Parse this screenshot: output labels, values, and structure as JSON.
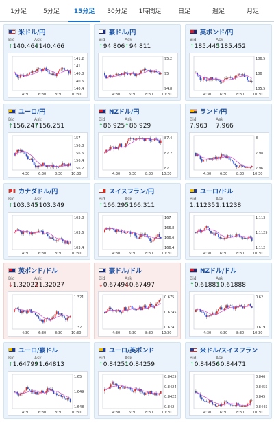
{
  "tabs": [
    {
      "label": "1分足"
    },
    {
      "label": "5分足"
    },
    {
      "label": "15分足",
      "active": true
    },
    {
      "label": "30分足"
    },
    {
      "label": "1時間足"
    },
    {
      "label": "日足"
    },
    {
      "label": "週足"
    },
    {
      "label": "月足"
    }
  ],
  "labels": {
    "bid": "Bid",
    "ask": "Ask"
  },
  "colors": {
    "up": "#2a9a4a",
    "down": "#d43c3c",
    "candle_up": "#d93030",
    "candle_down": "#2f4fd0",
    "ma": "#cc44cc"
  },
  "cards": [
    {
      "pair": "米ドル/円",
      "flag": "us",
      "dir": "up",
      "bid": "140.464",
      "ask": "140.466",
      "yticks": [
        "141.2",
        "141",
        "140.8",
        "140.6",
        "140.4"
      ],
      "xticks": [
        "4:30",
        "6:30",
        "8:30",
        "10:30"
      ]
    },
    {
      "pair": "豪ドル/円",
      "flag": "au",
      "dir": "up",
      "bid": "94.806",
      "ask": "94.811",
      "yticks": [
        "95.2",
        "95",
        "94.8"
      ],
      "xticks": [
        "4:30",
        "6:30",
        "8:30",
        "10:30"
      ]
    },
    {
      "pair": "英ポンド/円",
      "flag": "gb",
      "dir": "up",
      "bid": "185.445",
      "ask": "185.452",
      "yticks": [
        "186.5",
        "186",
        "185.5"
      ],
      "xticks": [
        "4:30",
        "6:30",
        "8:30",
        "10:30"
      ]
    },
    {
      "pair": "ユーロ/円",
      "flag": "eu",
      "dir": "up",
      "bid": "156.247",
      "ask": "156.251",
      "yticks": [
        "157",
        "156.8",
        "156.6",
        "156.4",
        "156.2"
      ],
      "xticks": [
        "4:30",
        "6:30",
        "8:30",
        "10:30"
      ]
    },
    {
      "pair": "NZドル/円",
      "flag": "nz",
      "dir": "up",
      "bid": "86.925",
      "ask": "86.929",
      "yticks": [
        "87.4",
        "87.2",
        "87"
      ],
      "xticks": [
        "4:30",
        "6:30",
        "8:30",
        "10:30"
      ]
    },
    {
      "pair": "ランド/円",
      "flag": "za",
      "dir": "none",
      "bid": "7.963",
      "ask": "7.966",
      "yticks": [
        "8",
        "7.98",
        "7.96"
      ],
      "xticks": [
        "4:30",
        "6:30",
        "8:30",
        "10:30"
      ]
    },
    {
      "pair": "カナダドル/円",
      "flag": "ca",
      "dir": "up",
      "bid": "103.345",
      "ask": "103.349",
      "yticks": [
        "103.8",
        "103.6",
        "103.4"
      ],
      "xticks": [
        "4:30",
        "6:30",
        "8:30",
        "10:30"
      ]
    },
    {
      "pair": "スイスフラン/円",
      "flag": "ch",
      "dir": "up",
      "bid": "166.295",
      "ask": "166.311",
      "yticks": [
        "167",
        "166.8",
        "166.6",
        "166.4"
      ],
      "xticks": [
        "4:30",
        "6:30",
        "8:30",
        "10:30"
      ]
    },
    {
      "pair": "ユーロ/ドル",
      "flag": "eu",
      "dir": "none",
      "bid": "1.11235",
      "ask": "1.11238",
      "yticks": [
        "1.113",
        "1.1125",
        "1.112"
      ],
      "xticks": [
        "4:30",
        "6:30",
        "8:30",
        "10:30"
      ]
    },
    {
      "pair": "英ポンド/ドル",
      "flag": "gb",
      "dir": "down",
      "bid": "1.32022",
      "ask": "1.32027",
      "yticks": [
        "1.321",
        "1.32"
      ],
      "xticks": [
        "4:30",
        "6:30",
        "8:30",
        "10:30"
      ]
    },
    {
      "pair": "豪ドル/ドル",
      "flag": "au",
      "dir": "down",
      "bid": "0.67494",
      "ask": "0.67497",
      "yticks": [
        "0.675",
        "0.6745",
        "0.674"
      ],
      "xticks": [
        "4:30",
        "6:30",
        "8:30",
        "10:30"
      ]
    },
    {
      "pair": "NZドル/ドル",
      "flag": "nz",
      "dir": "up",
      "bid": "0.61881",
      "ask": "0.61888",
      "yticks": [
        "0.62",
        "0.619"
      ],
      "xticks": [
        "4:30",
        "6:30",
        "8:30",
        "10:30"
      ]
    },
    {
      "pair": "ユーロ/豪ドル",
      "flag": "eu",
      "dir": "up",
      "bid": "1.64799",
      "ask": "1.64813",
      "yticks": [
        "1.65",
        "1.649",
        "1.648"
      ],
      "xticks": [
        "4:30",
        "6:30",
        "8:30",
        "10:30"
      ]
    },
    {
      "pair": "ユーロ/英ポンド",
      "flag": "eu",
      "dir": "up",
      "bid": "0.84251",
      "ask": "0.84259",
      "yticks": [
        "0.8425",
        "0.8424",
        "0.8422",
        "0.842"
      ],
      "xticks": [
        "4:30",
        "6:30",
        "8:30",
        "10:30"
      ]
    },
    {
      "pair": "米ドル/スイスフラン",
      "flag": "us",
      "dir": "up",
      "bid": "0.84456",
      "ask": "0.84471",
      "yticks": [
        "0.846",
        "0.8455",
        "0.845",
        "0.8445"
      ],
      "xticks": [
        "4:30",
        "6:30",
        "8:30",
        "10:30"
      ]
    }
  ]
}
